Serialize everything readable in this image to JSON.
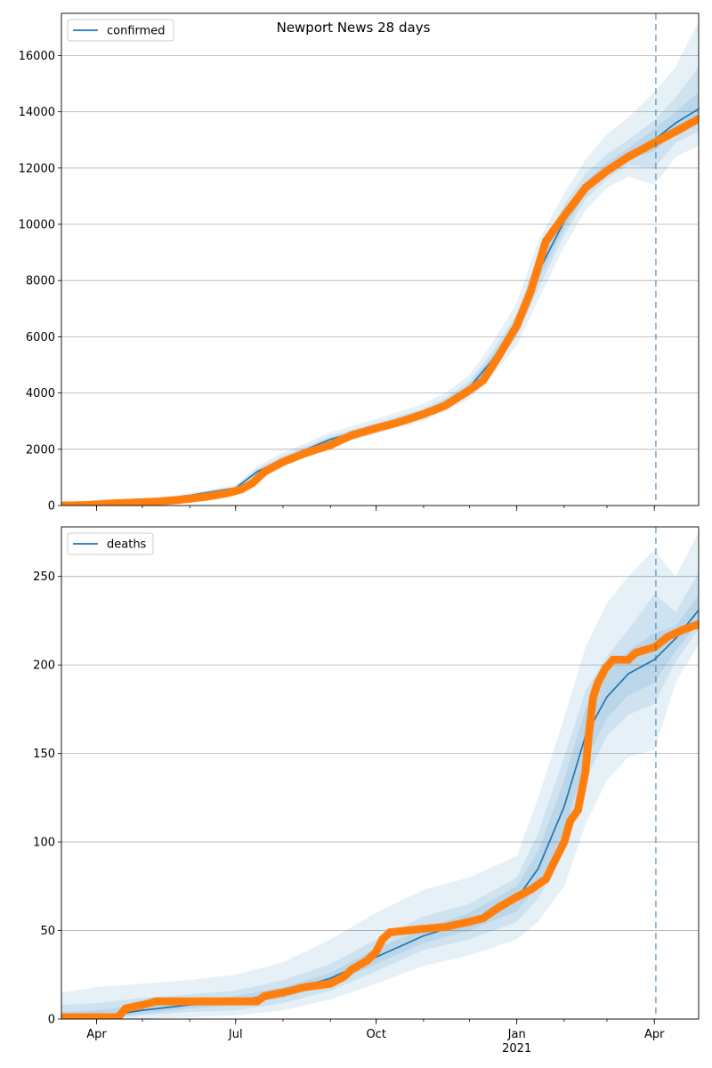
{
  "title": "Newport News 28 days",
  "colors": {
    "model": "#1f77b4",
    "observed": "#ff7f0e",
    "band": "#1f77b4",
    "grid": "#b0b0b0",
    "forecast_line": "#1f77b4"
  },
  "chart_data": [
    {
      "type": "line",
      "legend": {
        "label": "confirmed",
        "placement": "top-left"
      },
      "title": "Newport News 28 days",
      "xlabel": "",
      "ylabel": "",
      "xlim": [
        "2020-03-09",
        "2021-04-30"
      ],
      "ylim": [
        0,
        17500
      ],
      "y_ticks": [
        0,
        2000,
        4000,
        6000,
        8000,
        10000,
        12000,
        14000,
        16000
      ],
      "grid": "horizontal",
      "forecast_start": "2021-04-02",
      "series": [
        {
          "name": "confirmed",
          "kind": "model",
          "points": [
            [
              "2020-03-09",
              0
            ],
            [
              "2020-04-01",
              60
            ],
            [
              "2020-05-01",
              140
            ],
            [
              "2020-06-01",
              360
            ],
            [
              "2020-07-01",
              620
            ],
            [
              "2020-07-15",
              1200
            ],
            [
              "2020-08-01",
              1650
            ],
            [
              "2020-09-01",
              2350
            ],
            [
              "2020-10-01",
              2800
            ],
            [
              "2020-11-01",
              3300
            ],
            [
              "2020-11-15",
              3650
            ],
            [
              "2020-12-01",
              4200
            ],
            [
              "2020-12-15",
              5100
            ],
            [
              "2021-01-01",
              6400
            ],
            [
              "2021-01-15",
              8300
            ],
            [
              "2021-02-01",
              10100
            ],
            [
              "2021-02-15",
              11300
            ],
            [
              "2021-03-01",
              12000
            ],
            [
              "2021-03-15",
              12500
            ],
            [
              "2021-04-01",
              13000
            ],
            [
              "2021-04-15",
              13600
            ],
            [
              "2021-04-30",
              14100
            ]
          ],
          "bands": [
            {
              "level": "outer",
              "lower": [
                0,
                40,
                100,
                280,
                520,
                1000,
                1420,
                2100,
                2550,
                3000,
                3350,
                3800,
                4550,
                5700,
                7300,
                9200,
                10500,
                11300,
                11700,
                11400,
                12400,
                12800
              ],
              "upper": [
                0,
                90,
                190,
                440,
                740,
                1400,
                1880,
                2600,
                3080,
                3620,
                4000,
                4650,
                5700,
                7200,
                9400,
                11100,
                12300,
                13200,
                13800,
                14700,
                15600,
                17200
              ]
            },
            {
              "level": "middle",
              "lower": [
                0,
                50,
                120,
                320,
                570,
                1100,
                1530,
                2230,
                2680,
                3150,
                3500,
                4000,
                4800,
                6000,
                7700,
                9600,
                10900,
                11600,
                12100,
                12000,
                12900,
                13300
              ],
              "upper": [
                0,
                75,
                165,
                400,
                680,
                1300,
                1770,
                2470,
                2940,
                3460,
                3820,
                4420,
                5400,
                6800,
                8900,
                10700,
                11800,
                12500,
                13000,
                13700,
                14500,
                15600
              ]
            },
            {
              "level": "inner",
              "lower": [
                0,
                55,
                130,
                340,
                595,
                1150,
                1590,
                2290,
                2740,
                3220,
                3570,
                4100,
                4950,
                6200,
                8000,
                9850,
                11100,
                11800,
                12300,
                12600,
                13300,
                13700
              ],
              "upper": [
                0,
                68,
                155,
                385,
                650,
                1260,
                1710,
                2410,
                2870,
                3390,
                3740,
                4320,
                5260,
                6600,
                8600,
                10400,
                11500,
                12200,
                12700,
                13400,
                14000,
                14700
              ]
            }
          ]
        },
        {
          "name": "confirmed_observed",
          "kind": "observed",
          "points": [
            [
              "2020-03-09",
              0
            ],
            [
              "2020-03-25",
              15
            ],
            [
              "2020-04-10",
              70
            ],
            [
              "2020-04-25",
              105
            ],
            [
              "2020-05-10",
              140
            ],
            [
              "2020-05-25",
              200
            ],
            [
              "2020-06-10",
              300
            ],
            [
              "2020-06-25",
              430
            ],
            [
              "2020-07-05",
              580
            ],
            [
              "2020-07-12",
              800
            ],
            [
              "2020-07-20",
              1200
            ],
            [
              "2020-08-01",
              1550
            ],
            [
              "2020-08-15",
              1850
            ],
            [
              "2020-09-01",
              2150
            ],
            [
              "2020-09-15",
              2500
            ],
            [
              "2020-10-01",
              2750
            ],
            [
              "2020-10-15",
              2950
            ],
            [
              "2020-11-01",
              3250
            ],
            [
              "2020-11-15",
              3550
            ],
            [
              "2020-12-01",
              4100
            ],
            [
              "2020-12-10",
              4450
            ],
            [
              "2020-12-20",
              5300
            ],
            [
              "2021-01-01",
              6400
            ],
            [
              "2021-01-10",
              7600
            ],
            [
              "2021-01-20",
              9400
            ],
            [
              "2021-02-01",
              10300
            ],
            [
              "2021-02-15",
              11300
            ],
            [
              "2021-03-01",
              11900
            ],
            [
              "2021-03-15",
              12400
            ],
            [
              "2021-04-01",
              12900
            ],
            [
              "2021-04-15",
              13300
            ],
            [
              "2021-04-30",
              13750
            ]
          ]
        }
      ]
    },
    {
      "type": "line",
      "legend": {
        "label": "deaths",
        "placement": "top-left"
      },
      "xlabel": "",
      "ylabel": "",
      "xlim": [
        "2020-03-09",
        "2021-04-30"
      ],
      "ylim": [
        0,
        278
      ],
      "y_ticks": [
        0,
        50,
        100,
        150,
        200,
        250
      ],
      "x_ticks": [
        "Apr",
        "Jul",
        "Oct",
        "Jan",
        "Apr"
      ],
      "x_tick_dates": [
        "2020-04-01",
        "2020-07-01",
        "2020-10-01",
        "2021-01-01",
        "2021-04-01"
      ],
      "x_year_label": {
        "date": "2021-01-01",
        "label": "2021"
      },
      "grid": "horizontal",
      "forecast_start": "2021-04-02",
      "series": [
        {
          "name": "deaths",
          "kind": "model",
          "points": [
            [
              "2020-03-09",
              0
            ],
            [
              "2020-04-01",
              1
            ],
            [
              "2020-05-01",
              5
            ],
            [
              "2020-06-01",
              8
            ],
            [
              "2020-07-01",
              10
            ],
            [
              "2020-08-01",
              15
            ],
            [
              "2020-09-01",
              23
            ],
            [
              "2020-10-01",
              35
            ],
            [
              "2020-11-01",
              47
            ],
            [
              "2020-12-01",
              55
            ],
            [
              "2021-01-01",
              68
            ],
            [
              "2021-01-15",
              85
            ],
            [
              "2021-02-01",
              120
            ],
            [
              "2021-02-15",
              160
            ],
            [
              "2021-03-01",
              182
            ],
            [
              "2021-03-15",
              195
            ],
            [
              "2021-04-01",
              203
            ],
            [
              "2021-04-15",
              215
            ],
            [
              "2021-04-30",
              231
            ]
          ],
          "bands": [
            {
              "level": "outer",
              "lower": [
                0,
                0,
                0,
                1,
                2,
                5,
                11,
                20,
                30,
                36,
                45,
                55,
                75,
                110,
                135,
                148,
                152,
                190,
                212
              ],
              "upper": [
                15,
                18,
                20,
                22,
                25,
                32,
                45,
                60,
                73,
                80,
                92,
                125,
                170,
                210,
                235,
                250,
                265,
                250,
                275
              ]
            },
            {
              "level": "middle",
              "lower": [
                0,
                0,
                2,
                4,
                5,
                9,
                16,
                27,
                39,
                45,
                55,
                68,
                95,
                135,
                160,
                172,
                178,
                202,
                220
              ],
              "upper": [
                8,
                9,
                12,
                14,
                16,
                22,
                31,
                45,
                58,
                65,
                80,
                105,
                148,
                185,
                205,
                220,
                240,
                230,
                252
              ]
            },
            {
              "level": "inner",
              "lower": [
                0,
                0,
                3,
                6,
                8,
                12,
                20,
                31,
                43,
                50,
                61,
                76,
                106,
                146,
                170,
                183,
                190,
                208,
                224
              ],
              "upper": [
                4,
                5,
                8,
                10,
                13,
                18,
                26,
                40,
                51,
                60,
                75,
                95,
                135,
                175,
                195,
                208,
                218,
                222,
                240
              ]
            }
          ]
        },
        {
          "name": "deaths_observed",
          "kind": "observed",
          "points": [
            [
              "2020-03-09",
              1
            ],
            [
              "2020-04-01",
              1
            ],
            [
              "2020-04-15",
              1
            ],
            [
              "2020-04-20",
              6
            ],
            [
              "2020-05-01",
              8
            ],
            [
              "2020-05-10",
              10
            ],
            [
              "2020-06-01",
              10
            ],
            [
              "2020-07-01",
              10
            ],
            [
              "2020-07-15",
              10
            ],
            [
              "2020-07-20",
              13
            ],
            [
              "2020-08-01",
              15
            ],
            [
              "2020-08-15",
              18
            ],
            [
              "2020-09-01",
              20
            ],
            [
              "2020-09-10",
              24
            ],
            [
              "2020-09-15",
              28
            ],
            [
              "2020-09-25",
              33
            ],
            [
              "2020-10-01",
              38
            ],
            [
              "2020-10-05",
              45
            ],
            [
              "2020-10-10",
              49
            ],
            [
              "2020-11-01",
              51
            ],
            [
              "2020-11-15",
              52
            ],
            [
              "2020-12-01",
              55
            ],
            [
              "2020-12-10",
              57
            ],
            [
              "2020-12-20",
              63
            ],
            [
              "2021-01-01",
              69
            ],
            [
              "2021-01-10",
              73
            ],
            [
              "2021-01-20",
              79
            ],
            [
              "2021-01-25",
              88
            ],
            [
              "2021-02-01",
              100
            ],
            [
              "2021-02-05",
              112
            ],
            [
              "2021-02-10",
              118
            ],
            [
              "2021-02-15",
              140
            ],
            [
              "2021-02-17",
              160
            ],
            [
              "2021-02-20",
              182
            ],
            [
              "2021-02-23",
              190
            ],
            [
              "2021-02-28",
              198
            ],
            [
              "2021-03-05",
              203
            ],
            [
              "2021-03-15",
              203
            ],
            [
              "2021-03-20",
              207
            ],
            [
              "2021-04-01",
              210
            ],
            [
              "2021-04-10",
              216
            ],
            [
              "2021-04-20",
              220
            ],
            [
              "2021-04-30",
              223
            ]
          ]
        }
      ]
    }
  ]
}
